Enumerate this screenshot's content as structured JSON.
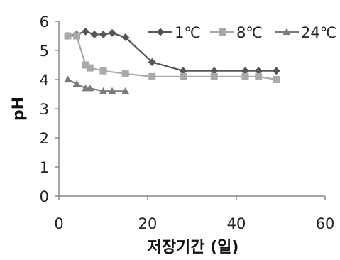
{
  "chart_data": {
    "type": "line",
    "title": "",
    "xlabel": "저장기간 (일)",
    "ylabel": "pH",
    "xlim": [
      0,
      60
    ],
    "ylim": [
      0,
      6
    ],
    "xticks": [
      0,
      20,
      40,
      60
    ],
    "yticks": [
      0,
      1,
      2,
      3,
      4,
      5,
      6
    ],
    "grid": false,
    "legend_position": "top-right",
    "series": [
      {
        "name": "1℃",
        "marker": "diamond",
        "color": "#555555",
        "x": [
          2,
          4,
          6,
          8,
          10,
          12,
          15,
          21,
          28,
          35,
          42,
          45,
          49
        ],
        "y": [
          5.5,
          5.55,
          5.65,
          5.55,
          5.55,
          5.6,
          5.45,
          4.6,
          4.3,
          4.3,
          4.3,
          4.3,
          4.3
        ]
      },
      {
        "name": "8℃",
        "marker": "square",
        "color": "#aaaaaa",
        "x": [
          2,
          4,
          6,
          7,
          10,
          15,
          21,
          28,
          35,
          42,
          45,
          49
        ],
        "y": [
          5.5,
          5.5,
          4.5,
          4.4,
          4.3,
          4.2,
          4.1,
          4.1,
          4.1,
          4.1,
          4.1,
          4.0
        ]
      },
      {
        "name": "24℃",
        "marker": "triangle",
        "color": "#7a7a7a",
        "x": [
          2,
          4,
          6,
          7,
          10,
          12,
          15
        ],
        "y": [
          4.0,
          3.85,
          3.7,
          3.7,
          3.6,
          3.6,
          3.6
        ]
      }
    ]
  }
}
